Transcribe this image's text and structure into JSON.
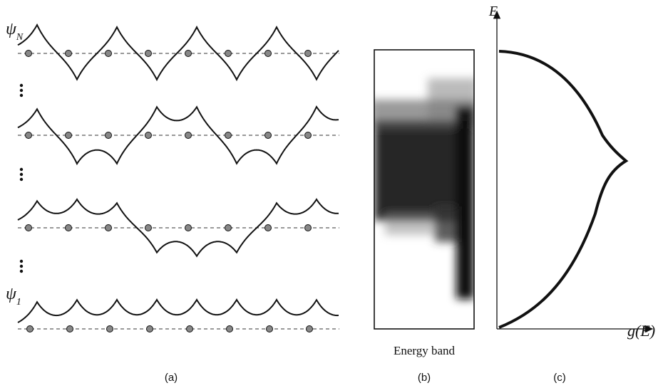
{
  "wavefunctions": [
    {
      "symbol": "ψ",
      "subscript": "N"
    },
    {
      "symbol": "ψ",
      "subscript": "1"
    }
  ],
  "band_label": "Energy band",
  "axes": {
    "y_label": "E",
    "x_label": "g(E)"
  },
  "panel_labels": [
    "(a)",
    "(b)",
    "(c)"
  ]
}
